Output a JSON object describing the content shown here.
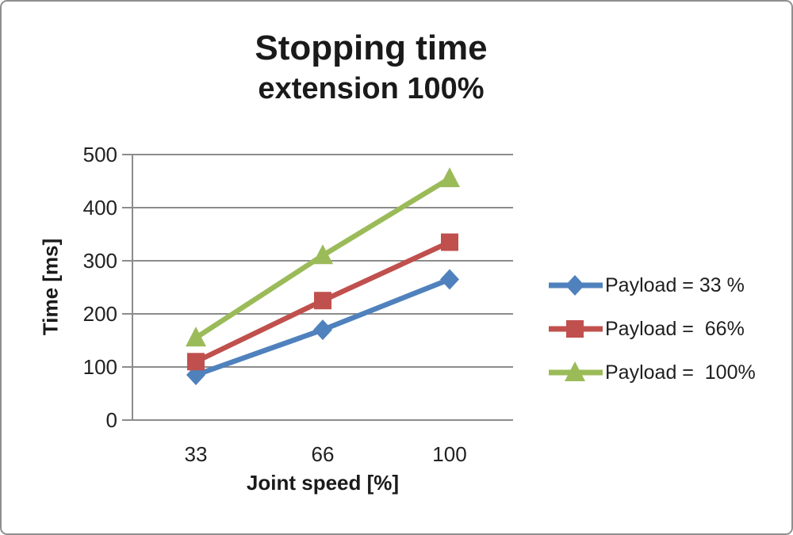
{
  "chart_data": {
    "type": "line",
    "title_line1": "Stopping time",
    "title_line2": "extension 100%",
    "xlabel": "Joint speed [%]",
    "ylabel": "Time [ms]",
    "categories": [
      "33",
      "66",
      "100"
    ],
    "ylim": [
      0,
      500
    ],
    "yticks": [
      0,
      100,
      200,
      300,
      400,
      500
    ],
    "grid": "horizontal-only",
    "legend_position": "right-middle",
    "series": [
      {
        "name": "Payload = 33 %",
        "marker": "diamond",
        "color": "#4F81BD",
        "values": [
          85,
          170,
          265
        ]
      },
      {
        "name": "Payload =  66%",
        "marker": "square",
        "color": "#C0504D",
        "values": [
          110,
          225,
          335
        ]
      },
      {
        "name": "Payload =  100%",
        "marker": "triangle",
        "color": "#9BBB59",
        "values": [
          155,
          310,
          455
        ]
      }
    ],
    "colors": {
      "grid": "#8C8C8C",
      "axis": "#8C8C8C",
      "text": "#212121",
      "border": "#8F8F8F"
    }
  }
}
